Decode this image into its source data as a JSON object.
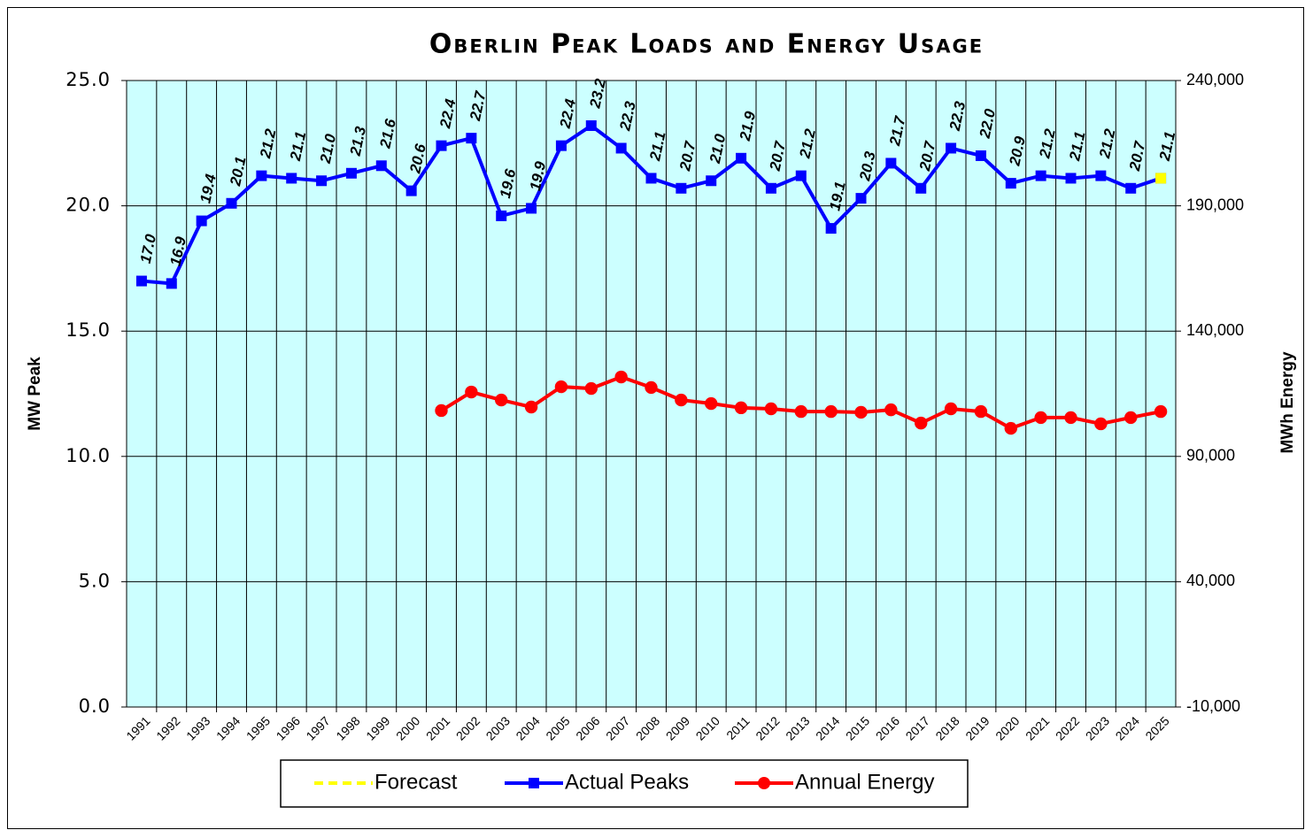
{
  "chart_data": {
    "type": "line",
    "title": "Oberlin Peak Loads and Energy Usage",
    "ylabel": "MW Peak",
    "y2label": "MWh Energy",
    "categories": [
      "1991",
      "1992",
      "1993",
      "1994",
      "1995",
      "1996",
      "1997",
      "1998",
      "1999",
      "2000",
      "2001",
      "2002",
      "2003",
      "2004",
      "2005",
      "2006",
      "2007",
      "2008",
      "2009",
      "2010",
      "2011",
      "2012",
      "2013",
      "2014",
      "2015",
      "2016",
      "2017",
      "2018",
      "2019",
      "2020",
      "2021",
      "2022",
      "2023",
      "2024",
      "2025"
    ],
    "ylim": [
      0,
      25
    ],
    "yticks": [
      {
        "value": 0,
        "label": "0.0"
      },
      {
        "value": 5,
        "label": "5.0"
      },
      {
        "value": 10,
        "label": "10.0"
      },
      {
        "value": 15,
        "label": "15.0"
      },
      {
        "value": 20,
        "label": "20.0"
      },
      {
        "value": 25,
        "label": "25.0"
      }
    ],
    "y2lim": [
      -10000,
      240000
    ],
    "y2ticks": [
      {
        "value": -10000,
        "label": "-10,000"
      },
      {
        "value": 40000,
        "label": "40,000"
      },
      {
        "value": 90000,
        "label": "90,000"
      },
      {
        "value": 140000,
        "label": "140,000"
      },
      {
        "value": 190000,
        "label": "190,000"
      },
      {
        "value": 240000,
        "label": "240,000"
      }
    ],
    "grid": true,
    "series": [
      {
        "name": "Forecast",
        "color": "#ffff00",
        "marker": "square",
        "dashed": true,
        "values": [
          null,
          null,
          null,
          null,
          null,
          null,
          null,
          null,
          null,
          null,
          null,
          null,
          null,
          null,
          null,
          null,
          null,
          null,
          null,
          null,
          null,
          null,
          null,
          null,
          null,
          null,
          null,
          null,
          null,
          null,
          null,
          null,
          null,
          null,
          21.1
        ]
      },
      {
        "name": "Actual Peaks",
        "color": "#0000ff",
        "marker": "square",
        "values": [
          17.0,
          16.9,
          19.4,
          20.1,
          21.2,
          21.1,
          21.0,
          21.3,
          21.6,
          20.6,
          22.4,
          22.7,
          19.6,
          19.9,
          22.4,
          23.2,
          22.3,
          21.1,
          20.7,
          21.0,
          21.9,
          20.7,
          21.2,
          19.1,
          20.3,
          21.7,
          20.7,
          22.3,
          22.0,
          20.9,
          21.2,
          21.1,
          21.2,
          20.7,
          21.1
        ],
        "value_labels": [
          "17.0",
          "16.9",
          "19.4",
          "20.1",
          "21.2",
          "21.1",
          "21.0",
          "21.3",
          "21.6",
          "20.6",
          "22.4",
          "22.7",
          "19.6",
          "19.9",
          "22.4",
          "23.2",
          "22.3",
          "21.1",
          "20.7",
          "21.0",
          "21.9",
          "20.7",
          "21.2",
          "19.1",
          "20.3",
          "21.7",
          "20.7",
          "22.3",
          "22.0",
          "20.9",
          "21.2",
          "21.1",
          "21.2",
          "20.7",
          "21.1"
        ]
      },
      {
        "name": "Annual Energy",
        "color": "#ff0000",
        "marker": "circle",
        "axis": "y2",
        "values": [
          null,
          null,
          null,
          null,
          null,
          null,
          null,
          null,
          null,
          null,
          108300,
          115700,
          112500,
          109700,
          117800,
          117100,
          121700,
          117500,
          112500,
          111100,
          109400,
          109000,
          107900,
          107900,
          107600,
          108600,
          103300,
          109000,
          107900,
          101200,
          105500,
          105500,
          103000,
          105500,
          107900
        ]
      }
    ]
  }
}
